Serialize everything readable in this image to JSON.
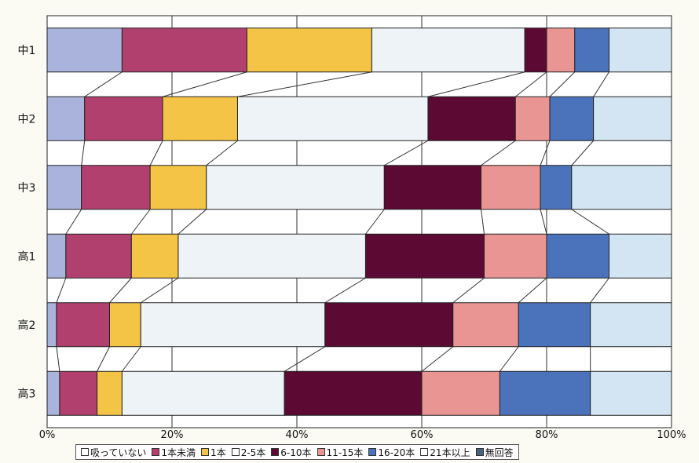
{
  "chart_data": {
    "type": "bar",
    "orientation": "horizontal",
    "stacked": true,
    "percent": true,
    "categories": [
      "中1",
      "中2",
      "中3",
      "高1",
      "高2",
      "高3"
    ],
    "xlim": [
      0,
      100
    ],
    "x_ticks": [
      "0%",
      "20%",
      "40%",
      "60%",
      "80%",
      "100%"
    ],
    "grid": true,
    "legend_position": "bottom",
    "series": [
      {
        "name": "吸っていない",
        "color": "#a9b3dc",
        "values": [
          12.0,
          6.0,
          5.5,
          3.0,
          1.5,
          2.0
        ]
      },
      {
        "name": "1本未満",
        "color": "#b2406e",
        "values": [
          20.0,
          12.5,
          11.0,
          10.5,
          8.5,
          6.0
        ]
      },
      {
        "name": "1本",
        "color": "#f3c445",
        "values": [
          20.0,
          12.0,
          9.0,
          7.5,
          5.0,
          4.0
        ]
      },
      {
        "name": "2-5本",
        "color": "#eef3f8",
        "values": [
          24.5,
          30.5,
          28.5,
          30.0,
          29.5,
          26.0
        ]
      },
      {
        "name": "6-10本",
        "color": "#5c0a33",
        "values": [
          3.5,
          14.0,
          15.5,
          19.0,
          20.5,
          22.0
        ]
      },
      {
        "name": "11-15本",
        "color": "#e99593",
        "values": [
          4.5,
          5.5,
          9.5,
          10.0,
          10.5,
          12.5
        ]
      },
      {
        "name": "16-20本",
        "color": "#4a73bb",
        "values": [
          5.5,
          7.0,
          5.0,
          10.0,
          11.5,
          14.5
        ]
      },
      {
        "name": "21本以上",
        "color": "#d3e5f3",
        "values": [
          10.0,
          12.5,
          16.0,
          10.0,
          13.0,
          13.0
        ]
      },
      {
        "name": "無回答",
        "color": "#4a607f",
        "values": [
          0,
          0,
          0,
          0,
          0,
          0
        ]
      }
    ]
  },
  "legend_items": [
    {
      "label": "吸っていない",
      "color": "#ffffff"
    },
    {
      "label": "1本未満",
      "color": "#b2406e"
    },
    {
      "label": "1本",
      "color": "#f3c445"
    },
    {
      "label": "2-5本",
      "color": "#ffffff"
    },
    {
      "label": "6-10本",
      "color": "#5c0a33"
    },
    {
      "label": "11-15本",
      "color": "#e99593"
    },
    {
      "label": "16-20本",
      "color": "#4a73bb"
    },
    {
      "label": "21本以上",
      "color": "#ffffff"
    },
    {
      "label": "無回答",
      "color": "#4a607f"
    }
  ]
}
